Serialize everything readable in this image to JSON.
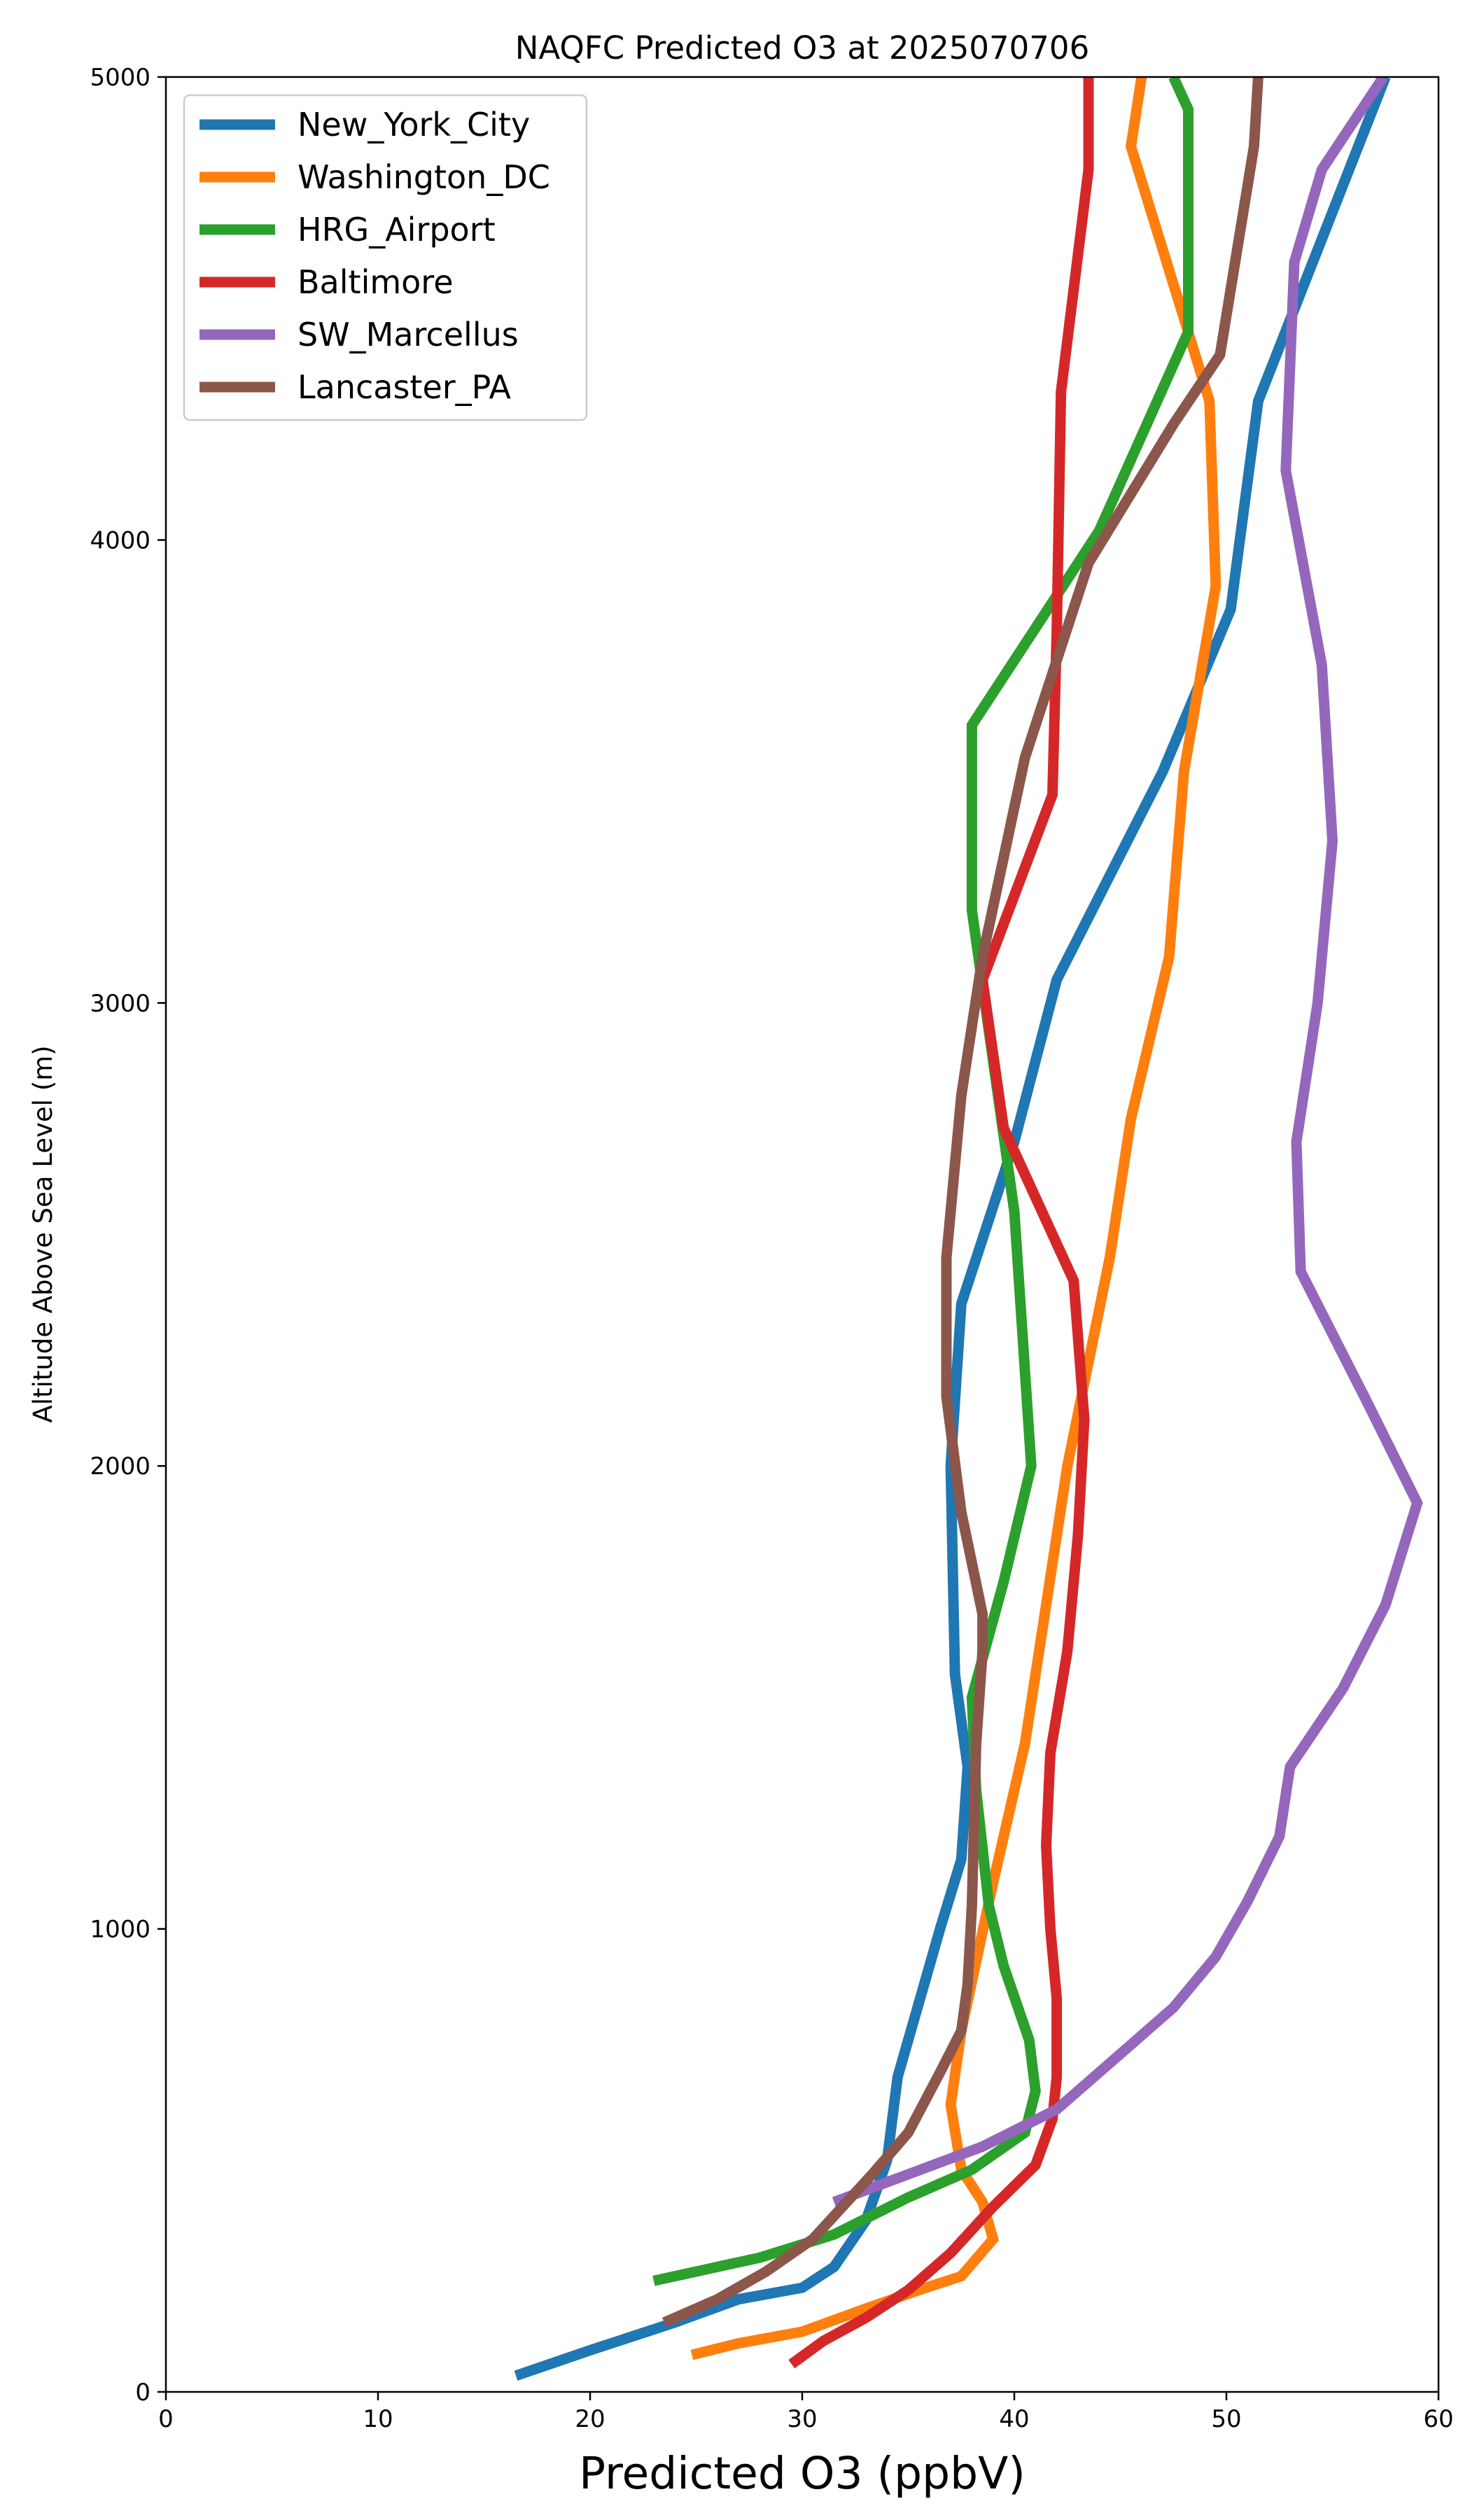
{
  "chart_data": {
    "type": "line",
    "title": "NAQFC Predicted O3 at 2025070706",
    "xlabel": "Predicted O3 (ppbV)",
    "ylabel": "Altitude Above Sea Level (m)",
    "xlim": [
      0,
      60
    ],
    "ylim": [
      0,
      5000
    ],
    "xticks": [
      0,
      10,
      20,
      30,
      40,
      50,
      60
    ],
    "yticks": [
      0,
      1000,
      2000,
      3000,
      4000,
      5000
    ],
    "grid": false,
    "legend_position": "top-left",
    "series": [
      {
        "name": "New_York_City",
        "color": "#1f77b4",
        "points": [
          [
            16.5,
            35
          ],
          [
            20,
            90
          ],
          [
            24,
            150
          ],
          [
            27,
            200
          ],
          [
            30,
            225
          ],
          [
            31.5,
            270
          ],
          [
            33,
            370
          ],
          [
            34,
            500
          ],
          [
            34.5,
            680
          ],
          [
            36.5,
            1000
          ],
          [
            37.5,
            1150
          ],
          [
            37.8,
            1350
          ],
          [
            37.2,
            1550
          ],
          [
            37,
            2000
          ],
          [
            37.5,
            2350
          ],
          [
            40,
            2700
          ],
          [
            42,
            3050
          ],
          [
            47,
            3500
          ],
          [
            50.2,
            3850
          ],
          [
            51.5,
            4300
          ],
          [
            57.5,
            5000
          ]
        ]
      },
      {
        "name": "Washington_DC",
        "color": "#ff7f0e",
        "points": [
          [
            24.8,
            80
          ],
          [
            27,
            105
          ],
          [
            30,
            130
          ],
          [
            33,
            180
          ],
          [
            35.5,
            220
          ],
          [
            37.5,
            250
          ],
          [
            39,
            330
          ],
          [
            38.5,
            410
          ],
          [
            37.5,
            480
          ],
          [
            37,
            620
          ],
          [
            37.5,
            780
          ],
          [
            39,
            1100
          ],
          [
            40.5,
            1400
          ],
          [
            42.5,
            2000
          ],
          [
            44.5,
            2450
          ],
          [
            45.5,
            2750
          ],
          [
            47.3,
            3100
          ],
          [
            48,
            3500
          ],
          [
            49.5,
            3900
          ],
          [
            49.2,
            4300
          ],
          [
            45.5,
            4850
          ],
          [
            46,
            5000
          ]
        ]
      },
      {
        "name": "HRG_Airport",
        "color": "#2ca02c",
        "points": [
          [
            23,
            240
          ],
          [
            28,
            290
          ],
          [
            31.5,
            340
          ],
          [
            35,
            420
          ],
          [
            38,
            480
          ],
          [
            40.5,
            560
          ],
          [
            41,
            650
          ],
          [
            40.7,
            760
          ],
          [
            39.5,
            920
          ],
          [
            38.8,
            1050
          ],
          [
            38.2,
            1300
          ],
          [
            38,
            1500
          ],
          [
            39.5,
            1750
          ],
          [
            40.8,
            2000
          ],
          [
            40,
            2550
          ],
          [
            38,
            3200
          ],
          [
            38,
            3600
          ],
          [
            44,
            4020
          ],
          [
            48.2,
            4450
          ],
          [
            48.2,
            4930
          ],
          [
            47.5,
            5000
          ]
        ]
      },
      {
        "name": "Baltimore",
        "color": "#d62728",
        "points": [
          [
            29.5,
            60
          ],
          [
            31,
            110
          ],
          [
            33,
            160
          ],
          [
            35,
            220
          ],
          [
            37,
            300
          ],
          [
            39,
            400
          ],
          [
            41,
            490
          ],
          [
            41.8,
            590
          ],
          [
            42,
            680
          ],
          [
            42,
            850
          ],
          [
            41.7,
            1000
          ],
          [
            41.5,
            1180
          ],
          [
            41.7,
            1380
          ],
          [
            42.5,
            1600
          ],
          [
            43,
            1850
          ],
          [
            43.3,
            2100
          ],
          [
            42.8,
            2400
          ],
          [
            39.5,
            2730
          ],
          [
            38.5,
            3050
          ],
          [
            41.8,
            3450
          ],
          [
            42,
            3800
          ],
          [
            42.2,
            4320
          ],
          [
            43.5,
            4800
          ],
          [
            43.5,
            5000
          ]
        ]
      },
      {
        "name": "SW_Marcellus",
        "color": "#9467bd",
        "points": [
          [
            31.5,
            410
          ],
          [
            35,
            470
          ],
          [
            38.5,
            530
          ],
          [
            42,
            610
          ],
          [
            45,
            730
          ],
          [
            47.5,
            830
          ],
          [
            49.5,
            940
          ],
          [
            51,
            1060
          ],
          [
            52.5,
            1200
          ],
          [
            53,
            1350
          ],
          [
            55.5,
            1520
          ],
          [
            57.5,
            1700
          ],
          [
            59,
            1920
          ],
          [
            56.5,
            2150
          ],
          [
            53.5,
            2420
          ],
          [
            53.3,
            2700
          ],
          [
            54.3,
            3000
          ],
          [
            55,
            3350
          ],
          [
            54.5,
            3730
          ],
          [
            52.8,
            4150
          ],
          [
            53.2,
            4600
          ],
          [
            54.5,
            4800
          ],
          [
            57.4,
            5000
          ]
        ]
      },
      {
        "name": "Lancaster_PA",
        "color": "#8c564b",
        "points": [
          [
            23.5,
            150
          ],
          [
            26,
            200
          ],
          [
            28.3,
            260
          ],
          [
            30.5,
            330
          ],
          [
            33.3,
            470
          ],
          [
            35,
            560
          ],
          [
            36.5,
            690
          ],
          [
            37.5,
            780
          ],
          [
            37.8,
            880
          ],
          [
            38,
            1050
          ],
          [
            38.2,
            1400
          ],
          [
            38.5,
            1600
          ],
          [
            38.5,
            1680
          ],
          [
            37.5,
            1900
          ],
          [
            36.8,
            2150
          ],
          [
            36.8,
            2450
          ],
          [
            37.5,
            2800
          ],
          [
            38.5,
            3100
          ],
          [
            40.5,
            3530
          ],
          [
            43.5,
            3950
          ],
          [
            47.5,
            4250
          ],
          [
            49.7,
            4400
          ],
          [
            51.3,
            4850
          ],
          [
            51.5,
            5000
          ]
        ]
      }
    ]
  }
}
